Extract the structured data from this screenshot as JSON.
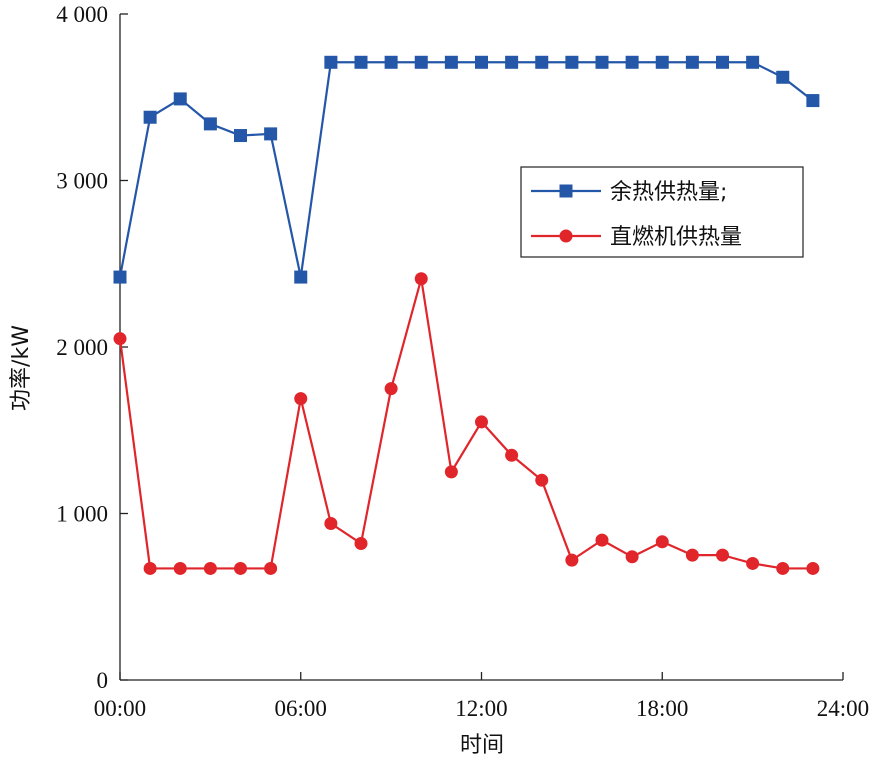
{
  "chart_data": {
    "type": "line",
    "title": "",
    "xlabel": "时间",
    "ylabel": "功率/kW",
    "xlim": [
      0,
      24
    ],
    "ylim": [
      0,
      4000
    ],
    "x_tick_labels": [
      "00:00",
      "06:00",
      "12:00",
      "18:00",
      "24:00"
    ],
    "x_tick_values": [
      0,
      6,
      12,
      18,
      24
    ],
    "y_tick_labels": [
      "0",
      "1 000",
      "2 000",
      "3 000",
      "4 000"
    ],
    "y_tick_values": [
      0,
      1000,
      2000,
      3000,
      4000
    ],
    "grid": false,
    "legend_position": "right",
    "x": [
      0,
      1,
      2,
      3,
      4,
      5,
      6,
      7,
      8,
      9,
      10,
      11,
      12,
      13,
      14,
      15,
      16,
      17,
      18,
      19,
      20,
      21,
      22,
      23
    ],
    "series": [
      {
        "name": "余热供热量;",
        "color": "#2457a8",
        "marker": "square",
        "values": [
          2420,
          3380,
          3490,
          3340,
          3270,
          3280,
          2420,
          3710,
          3710,
          3710,
          3710,
          3710,
          3710,
          3710,
          3710,
          3710,
          3710,
          3710,
          3710,
          3710,
          3710,
          3710,
          3620,
          3480
        ]
      },
      {
        "name": "直燃机供热量",
        "color": "#e0262b",
        "marker": "circle",
        "values": [
          2050,
          670,
          670,
          670,
          670,
          670,
          1690,
          940,
          820,
          1750,
          2410,
          1250,
          1550,
          1350,
          1200,
          720,
          840,
          740,
          830,
          750,
          750,
          700,
          670,
          670
        ]
      }
    ]
  }
}
